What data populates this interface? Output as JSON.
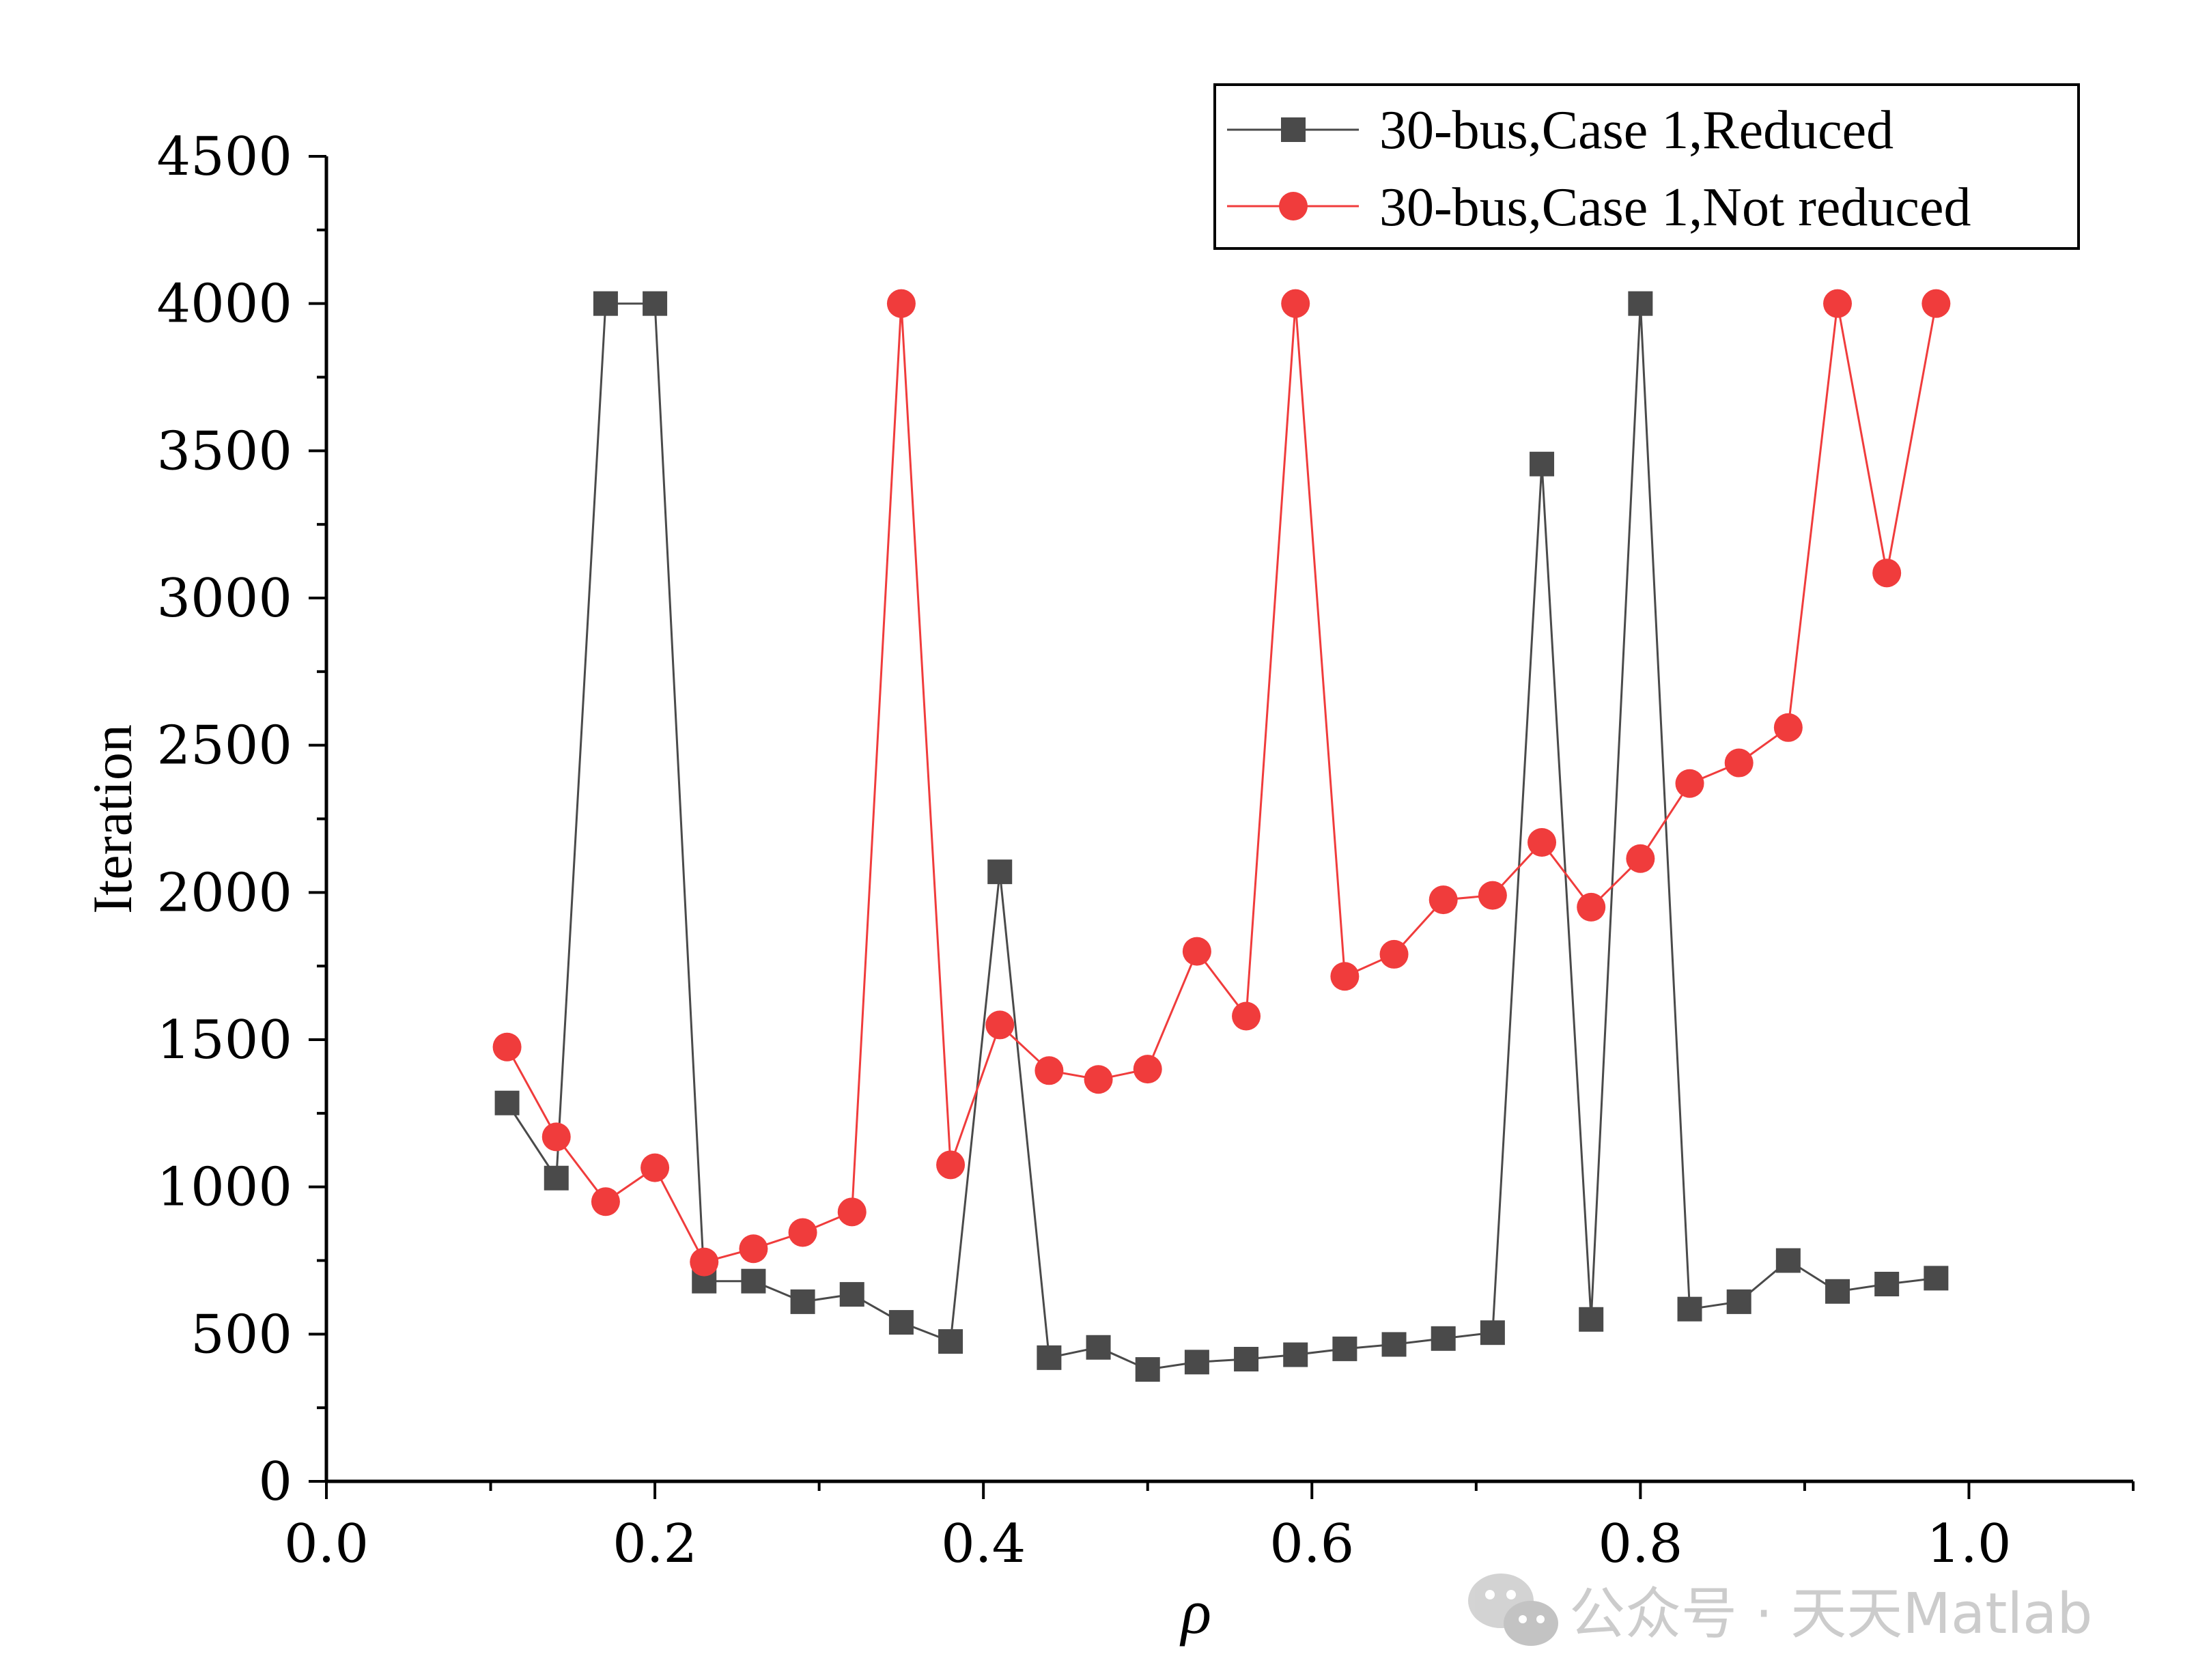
{
  "chart_data": {
    "type": "line",
    "xlabel": "ρ",
    "ylabel": "Iteration",
    "xlim": [
      0.0,
      1.1
    ],
    "ylim": [
      0,
      4500
    ],
    "xticks": [
      0.0,
      0.2,
      0.4,
      0.6,
      0.8,
      1.0
    ],
    "xtick_labels": [
      "0.0",
      "0.2",
      "0.4",
      "0.6",
      "0.8",
      "1.0"
    ],
    "yticks": [
      0,
      500,
      1000,
      1500,
      2000,
      2500,
      3000,
      3500,
      4000,
      4500
    ],
    "ytick_labels": [
      "0",
      "500",
      "1000",
      "1500",
      "2000",
      "2500",
      "3000",
      "3500",
      "4000",
      "4500"
    ],
    "grid": false,
    "legend_position": "top-right",
    "series": [
      {
        "name": "30-bus,Case 1,Reduced",
        "color": "#4a4a4a",
        "marker": "square",
        "x": [
          0.11,
          0.14,
          0.17,
          0.2,
          0.23,
          0.26,
          0.29,
          0.32,
          0.35,
          0.38,
          0.41,
          0.44,
          0.47,
          0.5,
          0.53,
          0.56,
          0.59,
          0.62,
          0.65,
          0.68,
          0.71,
          0.74,
          0.77,
          0.8,
          0.83,
          0.86,
          0.89,
          0.92,
          0.95,
          0.98
        ],
        "y": [
          1285,
          1030,
          4000,
          4000,
          680,
          680,
          610,
          635,
          540,
          475,
          2070,
          420,
          455,
          380,
          405,
          415,
          430,
          450,
          465,
          485,
          505,
          3455,
          550,
          4000,
          585,
          610,
          750,
          645,
          670,
          690
        ]
      },
      {
        "name": "30-bus,Case 1,Not reduced",
        "color": "#f03c3c",
        "marker": "circle",
        "x": [
          0.11,
          0.14,
          0.17,
          0.2,
          0.23,
          0.26,
          0.29,
          0.32,
          0.35,
          0.38,
          0.41,
          0.44,
          0.47,
          0.5,
          0.53,
          0.56,
          0.59,
          0.62,
          0.65,
          0.68,
          0.71,
          0.74,
          0.77,
          0.8,
          0.83,
          0.86,
          0.89,
          0.92,
          0.95,
          0.98
        ],
        "y": [
          1475,
          1170,
          950,
          1065,
          745,
          790,
          845,
          915,
          4000,
          1075,
          1550,
          1395,
          1365,
          1400,
          1800,
          1580,
          4000,
          1715,
          1790,
          1975,
          1990,
          2170,
          1950,
          2115,
          2370,
          2440,
          2560,
          4000,
          3085,
          4000
        ]
      }
    ]
  },
  "watermark": {
    "icon": "wechat-icon",
    "text": "公众号 · 天天Matlab"
  }
}
